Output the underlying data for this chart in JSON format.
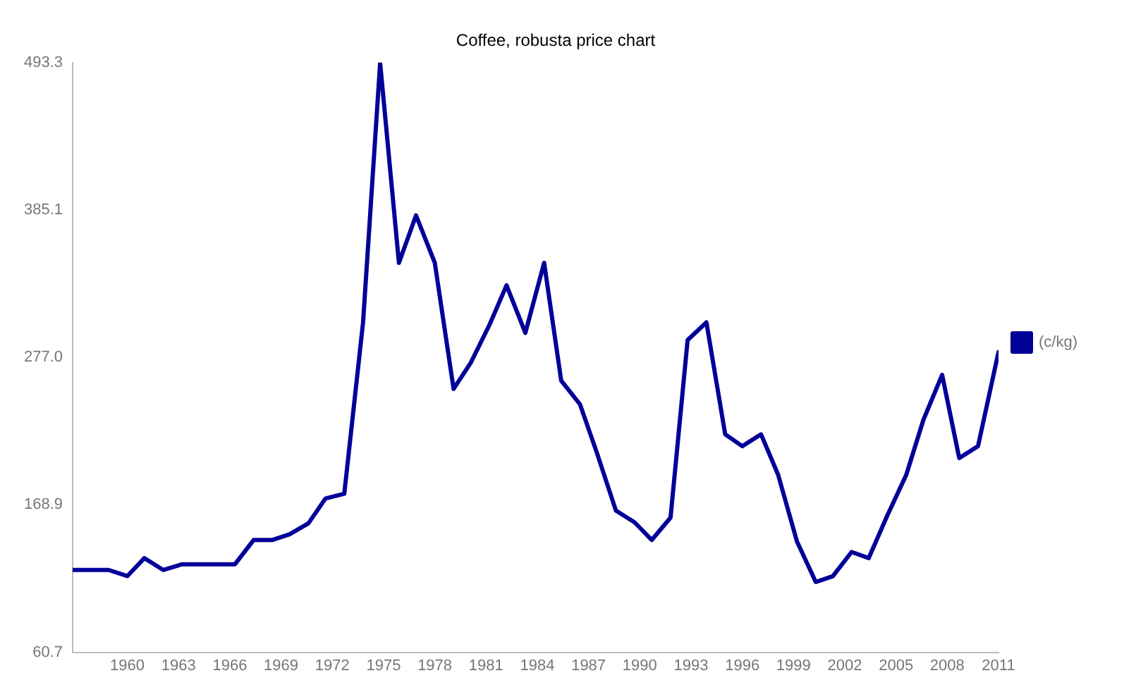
{
  "chart_data": {
    "type": "line",
    "title": "Coffee, robusta price chart",
    "x": [
      1956.8,
      1957.9,
      1958.9,
      1960.0,
      1961.0,
      1962.1,
      1963.2,
      1964.2,
      1965.3,
      1966.3,
      1967.4,
      1968.5,
      1969.5,
      1970.6,
      1971.6,
      1972.7,
      1973.8,
      1974.8,
      1975.9,
      1976.9,
      1978.0,
      1979.1,
      1980.1,
      1981.2,
      1982.2,
      1983.3,
      1984.4,
      1985.4,
      1986.5,
      1987.5,
      1988.6,
      1989.7,
      1990.7,
      1991.8,
      1992.8,
      1993.9,
      1995.0,
      1996.0,
      1997.1,
      1998.1,
      1999.2,
      2000.3,
      2001.3,
      2002.4,
      2003.4,
      2004.5,
      2005.6,
      2006.6,
      2007.7,
      2008.7,
      2009.8,
      2011.0
    ],
    "series": [
      {
        "name": "(c/kg)",
        "color": "#000099",
        "values": [
          121.1,
          121.1,
          121.1,
          116.6,
          129.8,
          121.1,
          125.3,
          125.3,
          125.3,
          125.3,
          143.1,
          143.1,
          147.3,
          155.3,
          173.5,
          177.0,
          302.7,
          493.0,
          346.4,
          381.2,
          346.4,
          253.9,
          273.0,
          300.9,
          329.9,
          295.0,
          346.4,
          260.0,
          242.6,
          206.6,
          164.7,
          156.0,
          143.1,
          159.5,
          289.8,
          302.7,
          220.6,
          211.9,
          220.6,
          190.9,
          142.1,
          112.3,
          116.5,
          134.3,
          129.8,
          161.3,
          190.9,
          231.1,
          264.2,
          203.2,
          211.9,
          281.0
        ]
      }
    ],
    "xlim": [
      1956.8,
      2011.0
    ],
    "xticks": [
      1960,
      1963,
      1966,
      1969,
      1972,
      1975,
      1978,
      1981,
      1984,
      1987,
      1990,
      1993,
      1996,
      1999,
      2002,
      2005,
      2008,
      2011
    ],
    "ylim": [
      60.7,
      493.3
    ],
    "yticks": [
      {
        "value": 60.7,
        "label": "60.7"
      },
      {
        "value": 168.9,
        "label": "168.9"
      },
      {
        "value": 277,
        "label": "277.0"
      },
      {
        "value": 385.1,
        "label": "385.1"
      },
      {
        "value": 493.3,
        "label": "493.3"
      }
    ],
    "grid": false,
    "legend": "right",
    "marker": "none",
    "line_style": "solid"
  }
}
